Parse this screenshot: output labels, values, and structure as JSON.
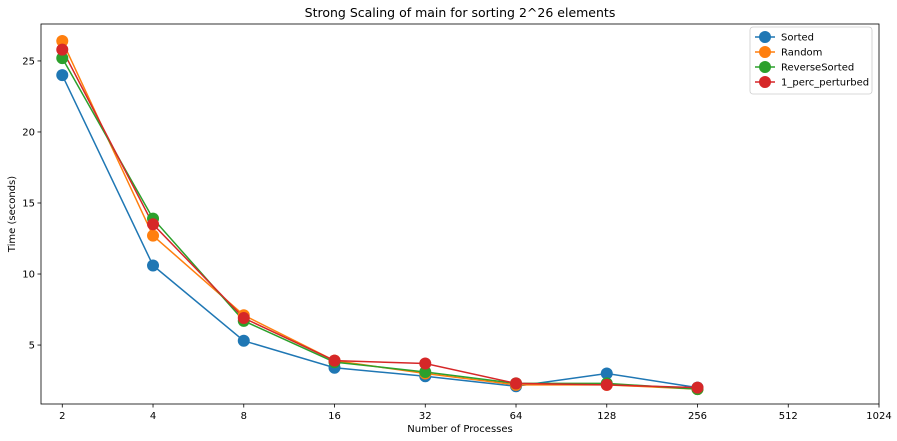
{
  "chart_data": {
    "type": "line",
    "title": "Strong Scaling of main for sorting 2^26 elements",
    "xlabel": "Number of Processes",
    "ylabel": "Time (seconds)",
    "x_scale": "log2",
    "x_ticks": [
      2,
      4,
      8,
      16,
      32,
      64,
      128,
      256,
      512,
      1024
    ],
    "x_tick_labels": [
      "2",
      "4",
      "8",
      "16",
      "32",
      "64",
      "128",
      "256",
      "512",
      "1024"
    ],
    "y_ticks": [
      5,
      10,
      15,
      20,
      25
    ],
    "y_tick_labels": [
      "5",
      "10",
      "15",
      "20",
      "25"
    ],
    "xlim": [
      1.7,
      1024
    ],
    "ylim": [
      0.85,
      27.6
    ],
    "x": [
      2,
      4,
      8,
      16,
      32,
      64,
      128,
      256
    ],
    "legend_position": "top-right",
    "grid": false,
    "series": [
      {
        "name": "Sorted",
        "color": "#1f77b4",
        "values": [
          24.0,
          10.6,
          5.3,
          3.4,
          2.8,
          2.1,
          3.0,
          2.0
        ]
      },
      {
        "name": "Random",
        "color": "#ff7f0e",
        "values": [
          26.4,
          12.7,
          7.1,
          3.9,
          3.0,
          2.2,
          2.2,
          1.9
        ]
      },
      {
        "name": "ReverseSorted",
        "color": "#2ca02c",
        "values": [
          25.2,
          13.9,
          6.7,
          3.8,
          3.1,
          2.3,
          2.3,
          1.9
        ]
      },
      {
        "name": "1_perc_perturbed",
        "color": "#d62728",
        "values": [
          25.8,
          13.5,
          6.9,
          3.9,
          3.7,
          2.3,
          2.2,
          2.0
        ]
      }
    ]
  }
}
